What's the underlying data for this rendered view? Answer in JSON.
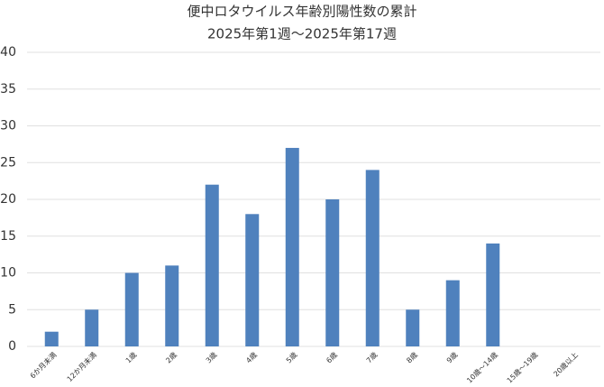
{
  "chart_data": {
    "type": "bar",
    "title": "便中ロタウイルス年齢別陽性数の累計",
    "subtitle": "2025年第1週～2025年第17週",
    "categories": [
      "6か月未満",
      "12か月未満",
      "1歳",
      "2歳",
      "3歳",
      "4歳",
      "5歳",
      "6歳",
      "7歳",
      "8歳",
      "9歳",
      "10歳～14歳",
      "15歳～19歳",
      "20歳以上"
    ],
    "values": [
      2,
      5,
      10,
      11,
      22,
      18,
      27,
      20,
      24,
      5,
      9,
      14,
      0,
      0
    ],
    "color": "#4f81bd",
    "ylim": [
      0,
      40
    ],
    "yticks": [
      0,
      5,
      10,
      15,
      20,
      25,
      30,
      35,
      40
    ],
    "grid": true
  }
}
